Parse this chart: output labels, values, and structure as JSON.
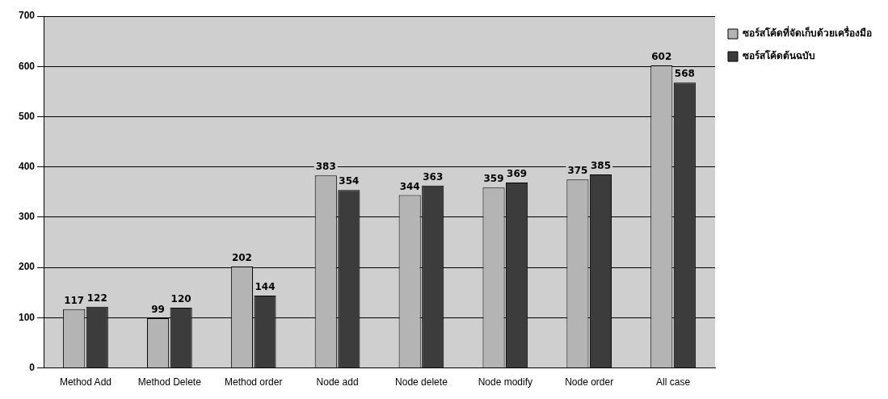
{
  "chart_data": {
    "type": "bar",
    "categories": [
      "Method Add",
      "Method Delete",
      "Method order",
      "Node add",
      "Node delete",
      "Node modify",
      "Node order",
      "All case"
    ],
    "series": [
      {
        "name": "ซอร์สโค้ดที่จัดเก็บด้วยเครื่องมือ",
        "color": "#b4b4b4",
        "values": [
          117,
          99,
          202,
          383,
          344,
          359,
          375,
          602
        ]
      },
      {
        "name": "ซอร์สโค้ดต้นฉบับ",
        "color": "#3c3c3c",
        "values": [
          122,
          120,
          144,
          354,
          363,
          369,
          385,
          568
        ]
      }
    ],
    "ylim": [
      0,
      700
    ],
    "yticks": [
      0,
      100,
      200,
      300,
      400,
      500,
      600,
      700
    ],
    "grid": "y",
    "legend": "top right",
    "data_labels": true
  }
}
